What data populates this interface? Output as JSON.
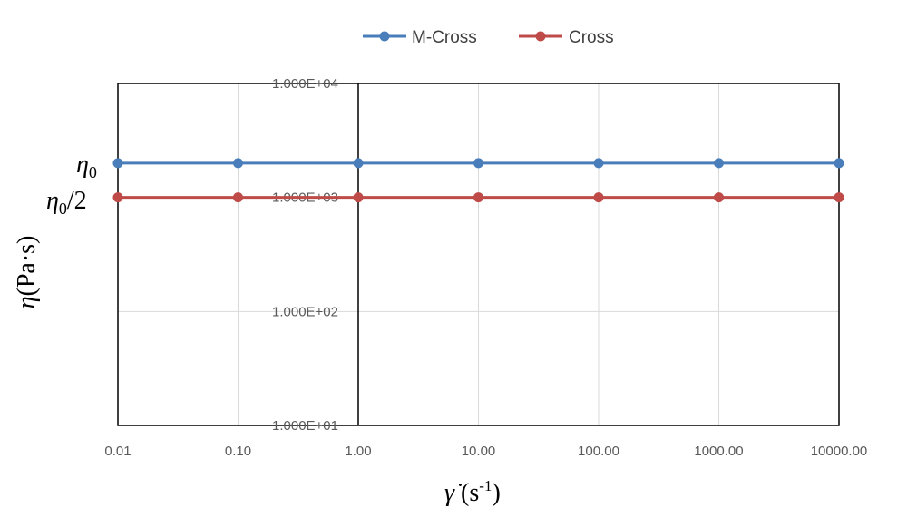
{
  "chart_data": {
    "type": "line",
    "x_scale": "log",
    "y_scale": "log",
    "x": [
      0.01,
      0.1,
      1,
      10,
      100,
      1000,
      10000
    ],
    "x_tick_labels": [
      "0.01",
      "0.10",
      "1.00",
      "10.00",
      "100.00",
      "1000.00",
      "10000.00"
    ],
    "y_tick_labels": [
      "1.000E+04",
      "1.000E+03",
      "1.000E+02",
      "1.000E+01"
    ],
    "y_ticks": [
      10000,
      1000,
      100,
      10
    ],
    "ylim": [
      10,
      10000
    ],
    "xlim": [
      0.01,
      10000
    ],
    "grid": true,
    "legend_position": "top",
    "series": [
      {
        "name": "M-Cross",
        "color": "#4a7ebb",
        "values": [
          2000,
          2000,
          2000,
          2000,
          2000,
          2000,
          2000
        ]
      },
      {
        "name": "Cross",
        "color": "#be4b48",
        "values": [
          1000,
          1000,
          1000,
          1000,
          1000,
          1000,
          1000
        ]
      }
    ],
    "annotations": {
      "eta0": "η",
      "eta0_sub": "0",
      "eta0_half": "η",
      "eta0_half_sub": "0",
      "eta0_half_suffix": "/2"
    },
    "ylabel": {
      "symbol": "η",
      "unit": "(Pa·s)"
    },
    "xlabel": {
      "symbol": "γ̇",
      "unit_open": " (s",
      "unit_sup": "-1",
      "unit_close": ")"
    }
  }
}
